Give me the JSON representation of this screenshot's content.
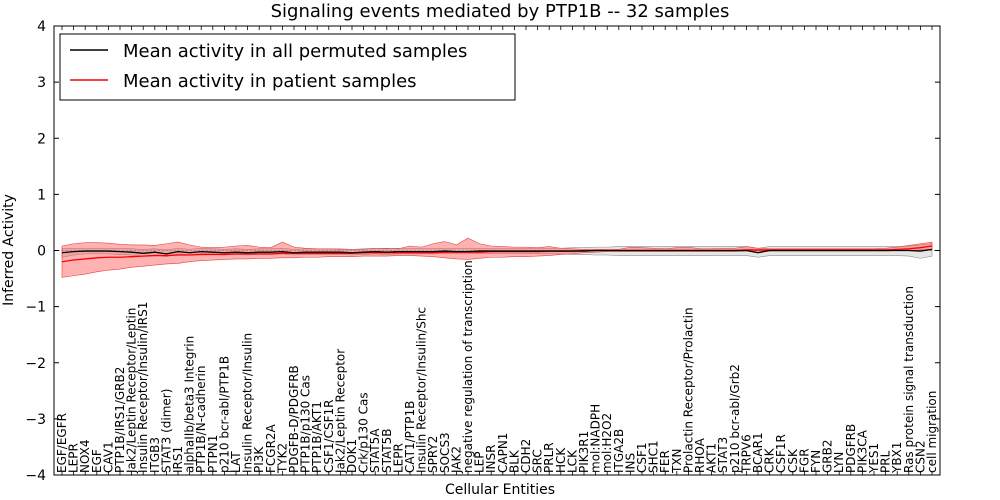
{
  "chart_data": {
    "type": "line",
    "title": "Signaling events mediated by PTP1B -- 32 samples",
    "xlabel": "Cellular Entities",
    "ylabel": "Inferred Activity",
    "ylim": [
      -4,
      4
    ],
    "yticks": [
      -4,
      -3,
      -2,
      -1,
      0,
      1,
      2,
      3,
      4
    ],
    "ytick_labels": [
      "−4",
      "−3",
      "−2",
      "−1",
      "0",
      "1",
      "2",
      "3",
      "4"
    ],
    "legend": {
      "placement": "top-left",
      "entries": [
        {
          "label": "Mean activity in all permuted samples",
          "color": "#000000"
        },
        {
          "label": "Mean activity in patient samples",
          "color": "#ff0000"
        }
      ]
    },
    "categories": [
      "EGF/EGFR",
      "LEPR",
      "NOX4",
      "EGF",
      "CAV1",
      "PTP1B/IRS1/GRB2",
      "Jak2/Leptin Receptor/Leptin",
      "Insulin Receptor/Insulin/IRS1",
      "ITGB3",
      "STAT3 (dimer)",
      "IRS1",
      "alphaIIb/beta3 Integrin",
      "PTP1B/N-cadherin",
      "PTPN1",
      "p210 bcr-abl/PTP1B",
      "LAT",
      "Insulin Receptor/Insulin",
      "PI3K",
      "FCGR2A",
      "TYK2",
      "PDGFB-D/PDGFRB",
      "PTP1B/p130 Cas",
      "PTP1B/AKT1",
      "CSF1/CSF1R",
      "Jak2/Leptin Receptor",
      "DOK1",
      "Crk/p130 Cas",
      "STAT5A",
      "STAT5B",
      "LEPR",
      "CAT1/PTP1B",
      "Insulin Receptor/Insulin/Shc",
      "SPRY2",
      "SOCS3",
      "JAK2",
      "negative regulation of transcription",
      "LEP",
      "INSR",
      "CAPN1",
      "BLK",
      "CDH2",
      "SRC",
      "PRLR",
      "HCK",
      "LCK",
      "PIK3R1",
      "mol:NADPH",
      "mol:H2O2",
      "ITGA2B",
      "INS",
      "CSF1",
      "SHC1",
      "FER",
      "TXN",
      "Prolactin Receptor/Prolactin",
      "RHOA",
      "AKT1",
      "STAT3",
      "p210 bcr-abl/Grb2",
      "TRPV6",
      "BCAR1",
      "CRK",
      "CSF1R",
      "CSK",
      "FGR",
      "FYN",
      "GRB2",
      "LYN",
      "PDGFRB",
      "PIK3CA",
      "YES1",
      "PRL",
      "YBX1",
      "Ras protein signal transduction",
      "CSN2",
      "cell migration"
    ],
    "series": [
      {
        "name": "Mean activity in all permuted samples",
        "color": "#000000",
        "values": [
          -0.04,
          -0.02,
          -0.01,
          -0.01,
          -0.01,
          -0.02,
          -0.03,
          -0.05,
          -0.03,
          -0.06,
          -0.02,
          -0.04,
          -0.02,
          -0.03,
          -0.04,
          -0.03,
          -0.04,
          -0.03,
          -0.03,
          -0.02,
          -0.04,
          -0.03,
          -0.03,
          -0.03,
          -0.03,
          -0.04,
          -0.03,
          -0.02,
          -0.03,
          -0.02,
          -0.02,
          -0.02,
          -0.02,
          -0.01,
          -0.02,
          -0.02,
          -0.01,
          -0.01,
          -0.01,
          -0.01,
          -0.01,
          -0.01,
          -0.01,
          -0.01,
          -0.01,
          -0.01,
          0.0,
          0.0,
          0.0,
          0.0,
          0.0,
          0.0,
          0.0,
          0.0,
          0.0,
          0.0,
          0.0,
          0.0,
          0.0,
          0.0,
          -0.04,
          0.0,
          0.0,
          0.0,
          0.0,
          0.0,
          0.0,
          0.0,
          0.0,
          0.0,
          0.0,
          0.0,
          0.0,
          0.0,
          -0.01,
          0.02
        ],
        "band": {
          "lower": [
            -0.12,
            -0.08,
            -0.06,
            -0.06,
            -0.06,
            -0.07,
            -0.08,
            -0.1,
            -0.08,
            -0.11,
            -0.06,
            -0.08,
            -0.06,
            -0.07,
            -0.08,
            -0.07,
            -0.08,
            -0.07,
            -0.07,
            -0.06,
            -0.08,
            -0.07,
            -0.07,
            -0.07,
            -0.07,
            -0.08,
            -0.07,
            -0.06,
            -0.07,
            -0.06,
            -0.06,
            -0.06,
            -0.06,
            -0.05,
            -0.06,
            -0.06,
            -0.05,
            -0.05,
            -0.05,
            -0.05,
            -0.05,
            -0.05,
            -0.06,
            -0.06,
            -0.07,
            -0.07,
            -0.08,
            -0.08,
            -0.09,
            -0.09,
            -0.09,
            -0.09,
            -0.09,
            -0.09,
            -0.09,
            -0.09,
            -0.09,
            -0.09,
            -0.09,
            -0.09,
            -0.12,
            -0.09,
            -0.09,
            -0.09,
            -0.09,
            -0.09,
            -0.09,
            -0.09,
            -0.09,
            -0.09,
            -0.09,
            -0.09,
            -0.09,
            -0.1,
            -0.14,
            -0.1
          ],
          "upper": [
            0.04,
            0.04,
            0.04,
            0.04,
            0.04,
            0.04,
            0.03,
            0.02,
            0.03,
            0.01,
            0.04,
            0.02,
            0.04,
            0.03,
            0.02,
            0.03,
            0.02,
            0.03,
            0.03,
            0.04,
            0.02,
            0.03,
            0.03,
            0.03,
            0.03,
            0.02,
            0.03,
            0.04,
            0.03,
            0.04,
            0.04,
            0.04,
            0.04,
            0.04,
            0.04,
            0.04,
            0.04,
            0.04,
            0.04,
            0.04,
            0.04,
            0.04,
            0.04,
            0.04,
            0.05,
            0.05,
            0.06,
            0.06,
            0.07,
            0.07,
            0.07,
            0.07,
            0.07,
            0.07,
            0.07,
            0.07,
            0.07,
            0.07,
            0.07,
            0.07,
            0.04,
            0.07,
            0.07,
            0.07,
            0.07,
            0.07,
            0.07,
            0.07,
            0.07,
            0.07,
            0.07,
            0.07,
            0.07,
            0.08,
            0.1,
            0.12
          ]
        }
      },
      {
        "name": "Mean activity in patient samples",
        "color": "#ff0000",
        "values": [
          -0.2,
          -0.17,
          -0.15,
          -0.13,
          -0.12,
          -0.12,
          -0.11,
          -0.1,
          -0.09,
          -0.09,
          -0.08,
          -0.08,
          -0.07,
          -0.07,
          -0.07,
          -0.06,
          -0.06,
          -0.06,
          -0.06,
          -0.05,
          -0.05,
          -0.05,
          -0.05,
          -0.05,
          -0.05,
          -0.05,
          -0.04,
          -0.04,
          -0.04,
          -0.04,
          -0.04,
          -0.04,
          -0.04,
          -0.03,
          -0.03,
          -0.03,
          -0.03,
          -0.02,
          -0.02,
          -0.02,
          -0.02,
          -0.02,
          -0.01,
          -0.01,
          -0.01,
          0.0,
          0.0,
          0.0,
          0.0,
          0.0,
          0.0,
          0.0,
          0.0,
          0.0,
          0.0,
          0.0,
          0.0,
          0.0,
          0.0,
          0.01,
          0.01,
          0.01,
          0.01,
          0.01,
          0.01,
          0.01,
          0.01,
          0.01,
          0.01,
          0.01,
          0.01,
          0.01,
          0.02,
          0.03,
          0.05,
          0.08
        ],
        "band": {
          "lower": [
            -0.48,
            -0.45,
            -0.42,
            -0.38,
            -0.35,
            -0.33,
            -0.3,
            -0.28,
            -0.26,
            -0.24,
            -0.23,
            -0.2,
            -0.18,
            -0.17,
            -0.16,
            -0.15,
            -0.15,
            -0.14,
            -0.14,
            -0.13,
            -0.13,
            -0.12,
            -0.12,
            -0.11,
            -0.11,
            -0.11,
            -0.1,
            -0.1,
            -0.1,
            -0.09,
            -0.09,
            -0.1,
            -0.11,
            -0.13,
            -0.15,
            -0.16,
            -0.14,
            -0.12,
            -0.12,
            -0.11,
            -0.11,
            -0.1,
            -0.09,
            -0.07,
            -0.06,
            -0.04,
            -0.03,
            -0.02,
            -0.02,
            -0.02,
            -0.02,
            -0.02,
            -0.02,
            -0.02,
            -0.02,
            -0.02,
            -0.02,
            -0.02,
            -0.02,
            -0.01,
            -0.01,
            -0.01,
            -0.01,
            -0.01,
            -0.01,
            -0.01,
            -0.01,
            -0.01,
            -0.01,
            -0.01,
            -0.01,
            -0.01,
            0.0,
            0.0,
            0.01,
            0.02
          ],
          "upper": [
            0.08,
            0.12,
            0.14,
            0.14,
            0.13,
            0.11,
            0.1,
            0.1,
            0.09,
            0.12,
            0.15,
            0.1,
            0.06,
            0.05,
            0.06,
            0.08,
            0.09,
            0.06,
            0.05,
            0.15,
            0.06,
            0.04,
            0.03,
            0.03,
            0.02,
            0.02,
            0.02,
            0.04,
            0.04,
            0.03,
            0.08,
            0.06,
            0.12,
            0.16,
            0.1,
            0.22,
            0.12,
            0.08,
            0.07,
            0.06,
            0.06,
            0.05,
            0.07,
            0.04,
            0.03,
            0.02,
            0.02,
            0.02,
            0.02,
            0.06,
            0.05,
            0.04,
            0.03,
            0.05,
            0.06,
            0.03,
            0.03,
            0.04,
            0.04,
            0.07,
            0.04,
            0.03,
            0.03,
            0.03,
            0.03,
            0.03,
            0.03,
            0.03,
            0.03,
            0.03,
            0.03,
            0.04,
            0.06,
            0.09,
            0.12,
            0.15
          ]
        }
      }
    ]
  }
}
